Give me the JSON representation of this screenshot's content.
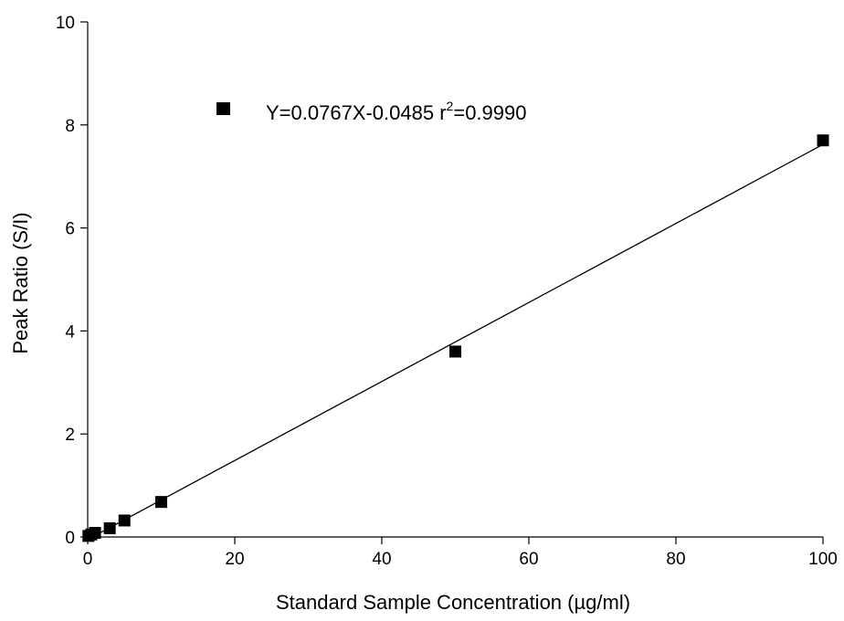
{
  "chart_data": {
    "type": "scatter",
    "title": "",
    "xlabel": "Standard Sample Concentration (µg/ml)",
    "ylabel": "Peak Ratio (S/I)",
    "xlim": [
      0,
      100
    ],
    "ylim": [
      0,
      10
    ],
    "x_ticks": [
      0,
      20,
      40,
      60,
      80,
      100
    ],
    "y_ticks": [
      0,
      2,
      4,
      6,
      8,
      10
    ],
    "grid": false,
    "legend_position": "top-left",
    "series": [
      {
        "name": "",
        "marker": "square",
        "color": "#000000",
        "points": [
          {
            "x": 0.1,
            "y": 0.02
          },
          {
            "x": 0.5,
            "y": 0.05
          },
          {
            "x": 1,
            "y": 0.08
          },
          {
            "x": 3,
            "y": 0.17
          },
          {
            "x": 5,
            "y": 0.32
          },
          {
            "x": 10,
            "y": 0.68
          },
          {
            "x": 50,
            "y": 3.6
          },
          {
            "x": 100,
            "y": 7.7
          }
        ]
      }
    ],
    "fit_line": {
      "slope": 0.0767,
      "intercept": -0.0485,
      "x_range": [
        0.6,
        100
      ],
      "color": "#000000"
    },
    "legend": {
      "equation": "Y=0.0767X-0.0485 r",
      "superscript": "2",
      "r2_value": "=0.9990"
    }
  }
}
